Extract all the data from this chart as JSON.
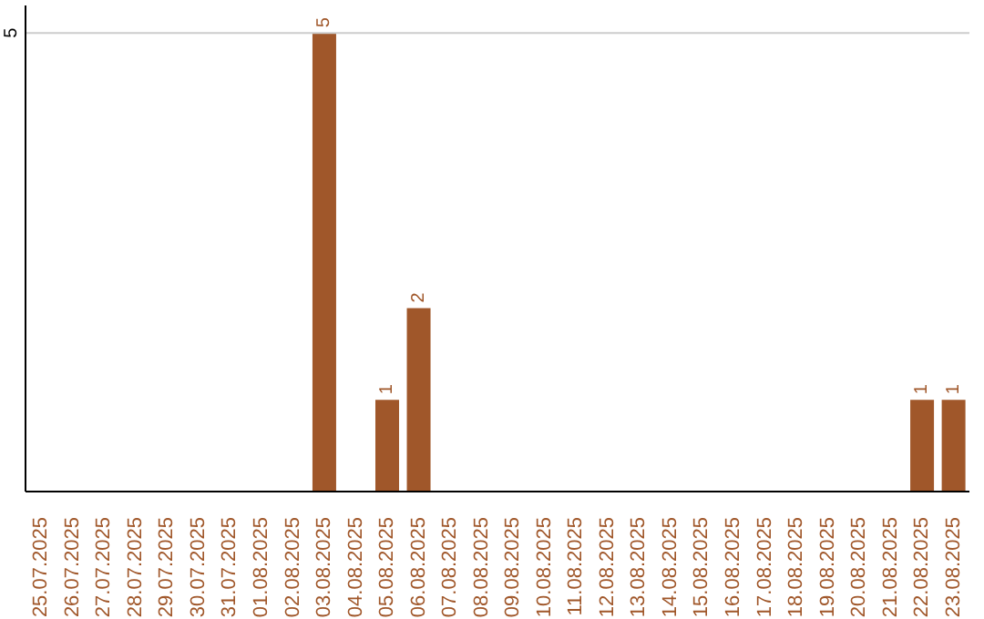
{
  "chart_data": {
    "type": "bar",
    "categories": [
      "25.07.2025",
      "26.07.2025",
      "27.07.2025",
      "28.07.2025",
      "29.07.2025",
      "30.07.2025",
      "31.07.2025",
      "01.08.2025",
      "02.08.2025",
      "03.08.2025",
      "04.08.2025",
      "05.08.2025",
      "06.08.2025",
      "07.08.2025",
      "08.08.2025",
      "09.08.2025",
      "10.08.2025",
      "11.08.2025",
      "12.08.2025",
      "13.08.2025",
      "14.08.2025",
      "15.08.2025",
      "16.08.2025",
      "17.08.2025",
      "18.08.2025",
      "19.08.2025",
      "20.08.2025",
      "21.08.2025",
      "22.08.2025",
      "23.08.2025"
    ],
    "values": [
      0,
      0,
      0,
      0,
      0,
      0,
      0,
      0,
      0,
      5,
      0,
      1,
      2,
      0,
      0,
      0,
      0,
      0,
      0,
      0,
      0,
      0,
      0,
      0,
      0,
      0,
      0,
      0,
      1,
      1
    ],
    "value_labels": [
      null,
      null,
      null,
      null,
      null,
      null,
      null,
      null,
      null,
      "5",
      null,
      "1",
      "2",
      null,
      null,
      null,
      null,
      null,
      null,
      null,
      null,
      null,
      null,
      null,
      null,
      null,
      null,
      null,
      "1",
      "1"
    ],
    "color": "#a0572a",
    "ylim": [
      0,
      5.3
    ],
    "yticks": [
      5
    ],
    "grid": "y",
    "legend": false
  }
}
